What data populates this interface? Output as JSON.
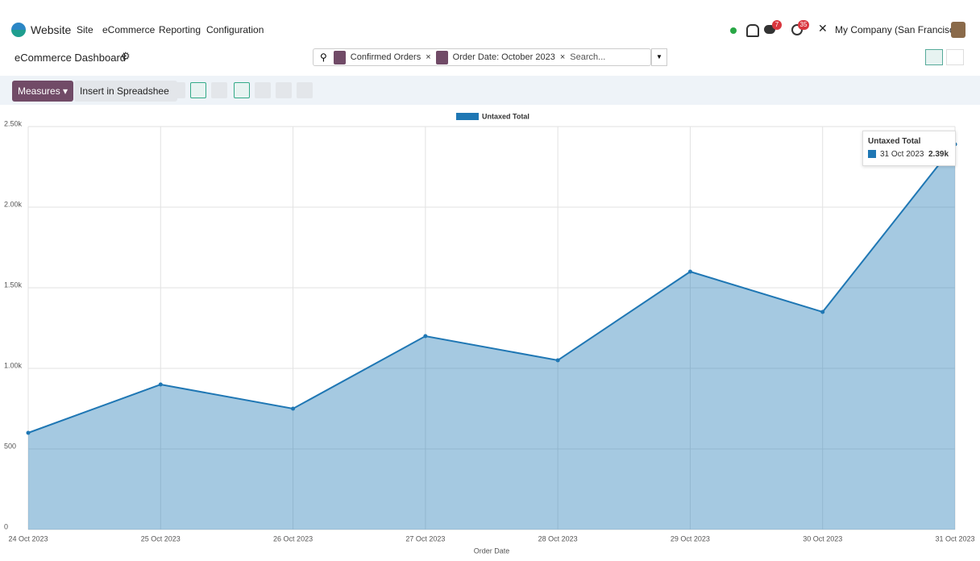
{
  "navbar": {
    "app": "Website",
    "menu": [
      "Site",
      "eCommerce",
      "Reporting",
      "Configuration"
    ],
    "badges": [
      "7",
      "35"
    ],
    "company": "My Company (San Francisco)"
  },
  "control_panel": {
    "title": "eCommerce Dashboard",
    "facets": [
      "Confirmed Orders",
      "Order Date: October 2023"
    ],
    "search_placeholder": "Search...",
    "buttons": [
      "Measures",
      "Insert in Spreadsheet"
    ]
  },
  "chart_data": {
    "type": "area",
    "x_label": "Order Date",
    "categories": [
      "24 Oct 2023",
      "25 Oct 2023",
      "26 Oct 2023",
      "27 Oct 2023",
      "28 Oct 2023",
      "29 Oct 2023",
      "30 Oct 2023",
      "31 Oct 2023"
    ],
    "series": [
      {
        "name": "Untaxed Total",
        "color": "#1f77b4",
        "values": [
          600,
          900,
          750,
          1200,
          1050,
          1600,
          1350,
          2390
        ]
      }
    ],
    "ylim": [
      0,
      2500
    ],
    "yticks": [
      0,
      500,
      {
        "value": 1000,
        "label": "1.00k"
      },
      {
        "value": 1500,
        "label": "1.50k"
      },
      {
        "value": 2000,
        "label": "2.00k"
      },
      {
        "value": 2500,
        "label": "2.50k"
      }
    ],
    "grid": true,
    "legend": "top",
    "tooltip": {
      "value_label": "2.39k"
    }
  }
}
